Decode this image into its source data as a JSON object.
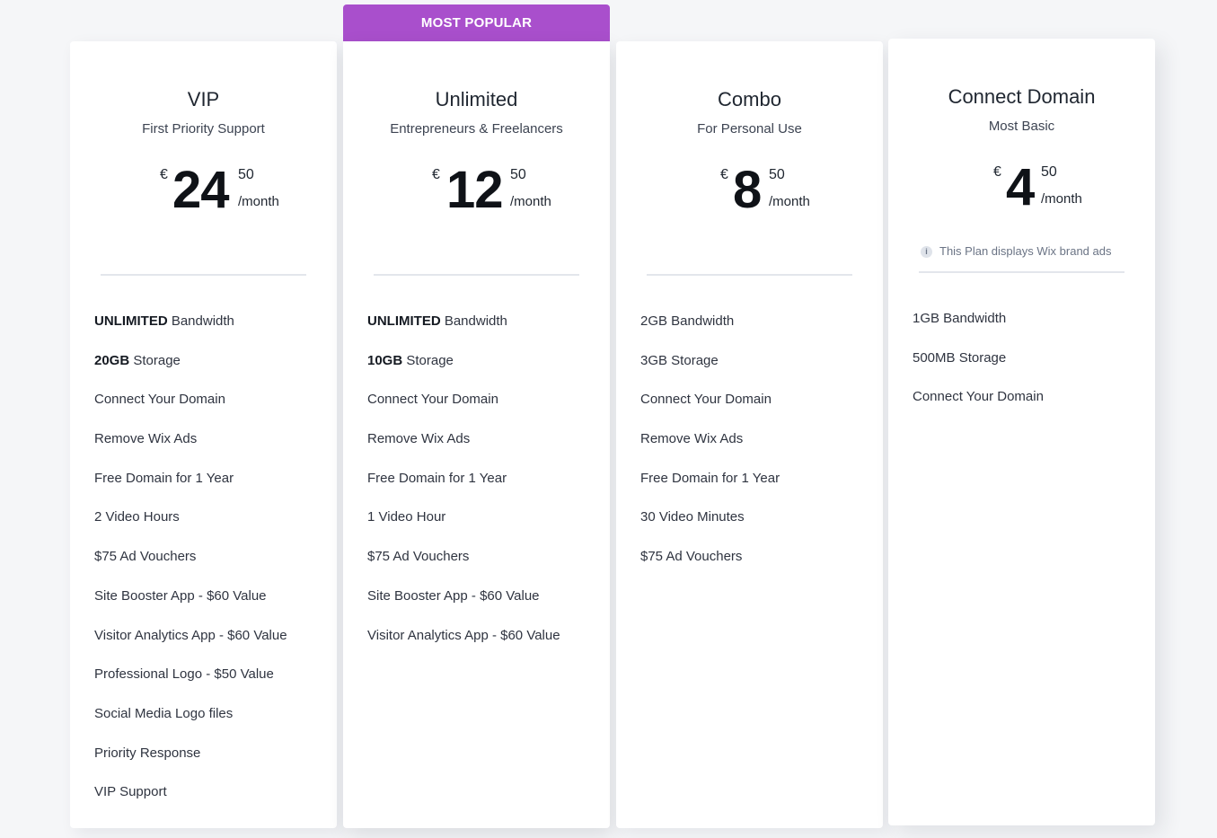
{
  "ribbon": {
    "label": "MOST POPULAR"
  },
  "colors": {
    "ribbon": "#a94fcc",
    "background": "#f5f6f8",
    "card": "#ffffff"
  },
  "plans": [
    {
      "name": "VIP",
      "tagline": "First Priority Support",
      "currency": "€",
      "amount": "24",
      "cents": "50",
      "period": "/month",
      "features": [
        {
          "bold": "UNLIMITED",
          "text": " Bandwidth"
        },
        {
          "bold": "20GB",
          "text": " Storage"
        },
        {
          "bold": "",
          "text": "Connect Your Domain"
        },
        {
          "bold": "",
          "text": "Remove Wix Ads"
        },
        {
          "bold": "",
          "text": "Free Domain for 1 Year"
        },
        {
          "bold": "",
          "text": "2 Video Hours"
        },
        {
          "bold": "",
          "text": "$75 Ad Vouchers"
        },
        {
          "bold": "",
          "text": "Site Booster App - $60 Value"
        },
        {
          "bold": "",
          "text": "Visitor Analytics App - $60 Value"
        },
        {
          "bold": "",
          "text": "Professional Logo - $50 Value"
        },
        {
          "bold": "",
          "text": "Social Media Logo files"
        },
        {
          "bold": "",
          "text": "Priority Response"
        },
        {
          "bold": "",
          "text": "VIP Support"
        }
      ]
    },
    {
      "name": "Unlimited",
      "tagline": "Entrepreneurs & Freelancers",
      "currency": "€",
      "amount": "12",
      "cents": "50",
      "period": "/month",
      "features": [
        {
          "bold": "UNLIMITED",
          "text": " Bandwidth"
        },
        {
          "bold": "10GB",
          "text": " Storage"
        },
        {
          "bold": "",
          "text": "Connect Your Domain"
        },
        {
          "bold": "",
          "text": "Remove Wix Ads"
        },
        {
          "bold": "",
          "text": "Free Domain for 1 Year"
        },
        {
          "bold": "",
          "text": "1 Video Hour"
        },
        {
          "bold": "",
          "text": "$75 Ad Vouchers"
        },
        {
          "bold": "",
          "text": "Site Booster App - $60 Value"
        },
        {
          "bold": "",
          "text": "Visitor Analytics App - $60 Value"
        }
      ]
    },
    {
      "name": "Combo",
      "tagline": "For Personal Use",
      "currency": "€",
      "amount": "8",
      "cents": "50",
      "period": "/month",
      "features": [
        {
          "bold": "",
          "text": "2GB Bandwidth"
        },
        {
          "bold": "",
          "text": "3GB Storage"
        },
        {
          "bold": "",
          "text": "Connect Your Domain"
        },
        {
          "bold": "",
          "text": "Remove Wix Ads"
        },
        {
          "bold": "",
          "text": "Free Domain for 1 Year"
        },
        {
          "bold": "",
          "text": "30 Video Minutes"
        },
        {
          "bold": "",
          "text": "$75 Ad Vouchers"
        }
      ]
    },
    {
      "name": "Connect Domain",
      "tagline": "Most Basic",
      "currency": "€",
      "amount": "4",
      "cents": "50",
      "period": "/month",
      "ad_note": "This Plan displays Wix brand ads",
      "features": [
        {
          "bold": "",
          "text": "1GB Bandwidth"
        },
        {
          "bold": "",
          "text": "500MB Storage"
        },
        {
          "bold": "",
          "text": "Connect Your Domain"
        }
      ]
    }
  ]
}
